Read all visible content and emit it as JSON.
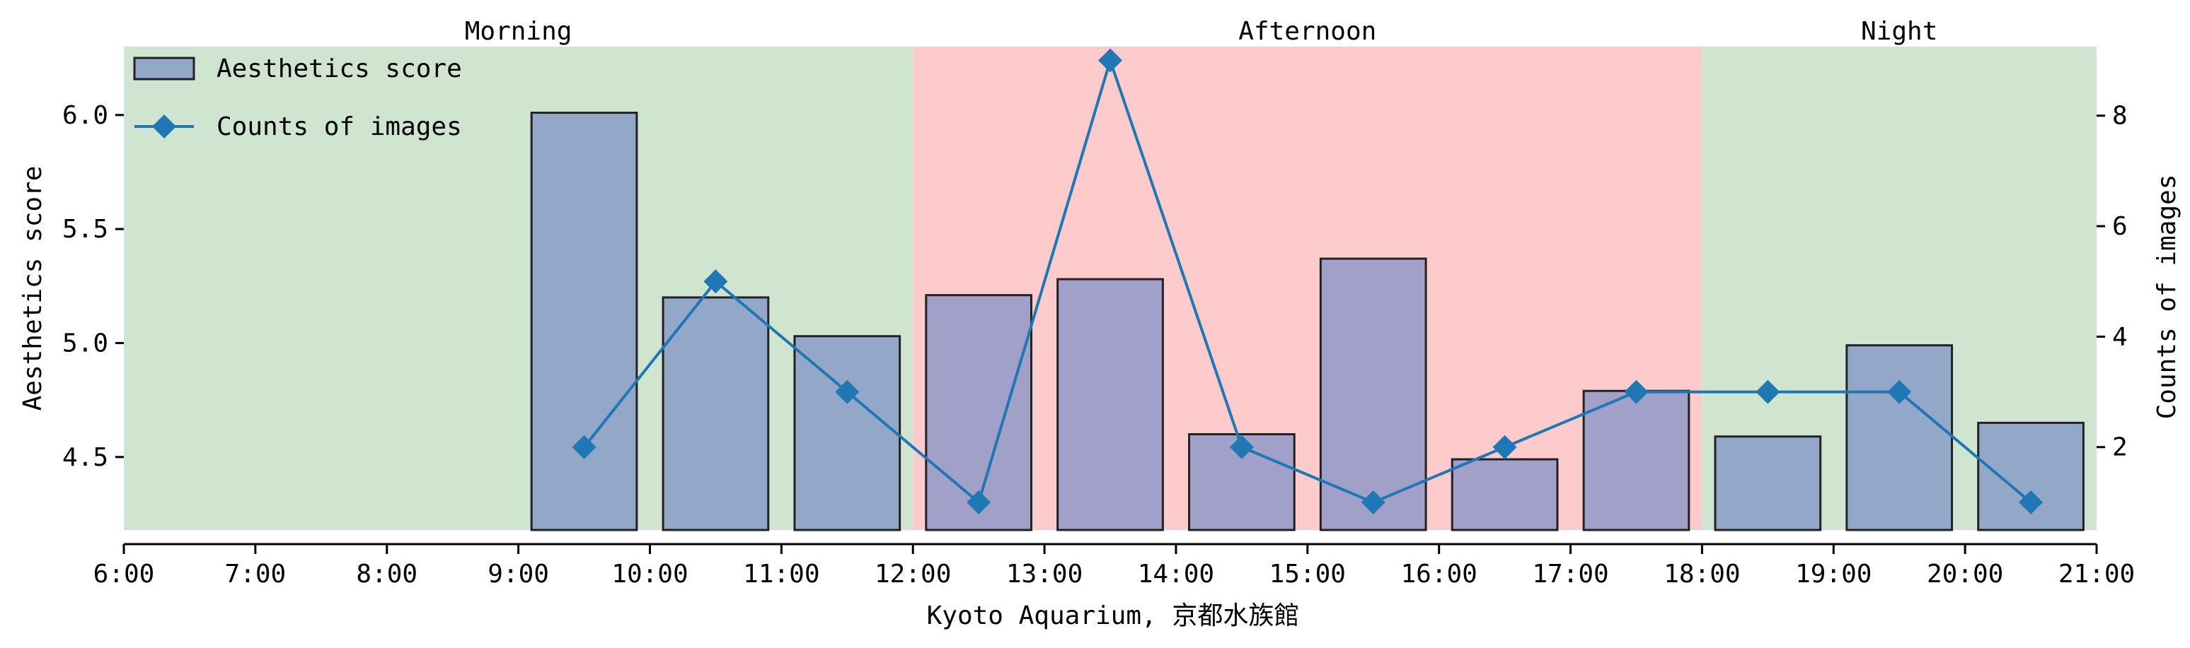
{
  "chart_data": {
    "type": "bar+line",
    "xlabel": "Kyoto Aquarium, 京都水族館",
    "ylabel_left": "Aesthetics score",
    "ylabel_right": "Counts of images",
    "x_ticks": [
      "6:00",
      "7:00",
      "8:00",
      "9:00",
      "10:00",
      "11:00",
      "12:00",
      "13:00",
      "14:00",
      "15:00",
      "16:00",
      "17:00",
      "18:00",
      "19:00",
      "20:00",
      "21:00"
    ],
    "x_range": [
      6,
      21
    ],
    "y_left_ticks": [
      "4.5",
      "5.0",
      "5.5",
      "6.0"
    ],
    "y_left_range": [
      4.18,
      6.3
    ],
    "y_right_ticks": [
      "2",
      "4",
      "6",
      "8"
    ],
    "y_right_range": [
      0.5,
      9.25
    ],
    "periods": [
      {
        "label": "Morning",
        "start": 6,
        "end": 12,
        "color": "#cfe5cf"
      },
      {
        "label": "Afternoon",
        "start": 12,
        "end": 18,
        "color": "#fdcbcb"
      },
      {
        "label": "Night",
        "start": 18,
        "end": 21,
        "color": "#cfe5cf"
      }
    ],
    "bars": {
      "name": "Aesthetics score",
      "hours": [
        9,
        10,
        11,
        12,
        13,
        14,
        15,
        16,
        17,
        18,
        19,
        20
      ],
      "values": [
        6.01,
        5.2,
        5.03,
        5.21,
        5.28,
        4.6,
        5.37,
        4.49,
        4.79,
        4.59,
        4.99,
        4.65
      ],
      "color": "#7b8fc6",
      "edge_color": "#222222"
    },
    "line": {
      "name": "Counts of images",
      "x": [
        9.5,
        10.5,
        11.5,
        12.5,
        13.5,
        14.5,
        15.5,
        16.5,
        17.5,
        18.5,
        19.5,
        20.5
      ],
      "values": [
        2,
        5,
        3,
        1,
        9,
        2,
        1,
        2,
        3,
        3,
        3,
        1
      ],
      "color": "#1f77b4",
      "marker": "diamond"
    },
    "legend_position": "top-left",
    "grid": false
  }
}
